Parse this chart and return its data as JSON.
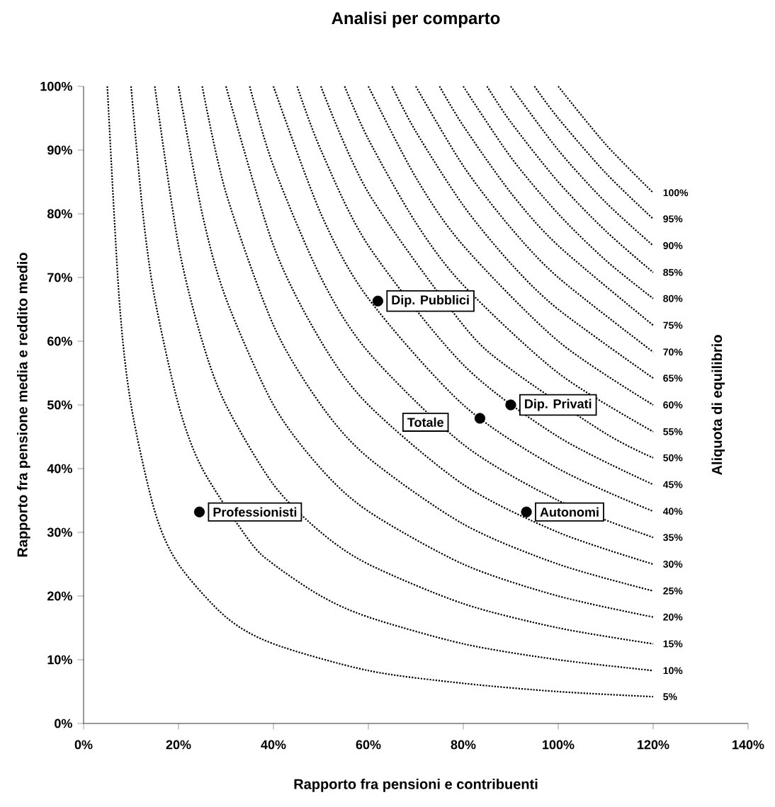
{
  "chart_data": {
    "type": "line",
    "title": "Analisi per comparto",
    "xlabel": "Rapporto fra pensioni e contribuenti",
    "ylabel": "Rapporto fra pensione media e reddito medio",
    "y2label": "Aliquota di equilibrio",
    "xlim": [
      0,
      140
    ],
    "ylim": [
      0,
      100
    ],
    "xticks": [
      {
        "value": 0,
        "label": "0%"
      },
      {
        "value": 20,
        "label": "20%"
      },
      {
        "value": 40,
        "label": "40%"
      },
      {
        "value": 60,
        "label": "60%"
      },
      {
        "value": 80,
        "label": "80%"
      },
      {
        "value": 100,
        "label": "100%"
      },
      {
        "value": 120,
        "label": "120%"
      },
      {
        "value": 140,
        "label": "140%"
      }
    ],
    "yticks": [
      {
        "value": 0,
        "label": "0%"
      },
      {
        "value": 10,
        "label": "10%"
      },
      {
        "value": 20,
        "label": "20%"
      },
      {
        "value": 30,
        "label": "30%"
      },
      {
        "value": 40,
        "label": "40%"
      },
      {
        "value": 50,
        "label": "50%"
      },
      {
        "value": 60,
        "label": "60%"
      },
      {
        "value": 70,
        "label": "70%"
      },
      {
        "value": 80,
        "label": "80%"
      },
      {
        "value": 90,
        "label": "90%"
      },
      {
        "value": 100,
        "label": "100%"
      }
    ],
    "grid": false,
    "marker": "none",
    "line_style": "dotted",
    "series": [
      {
        "name": "5%",
        "color": "#000000",
        "x": [
          5,
          7.5,
          10,
          15,
          20,
          30,
          40,
          60,
          80,
          100,
          120
        ],
        "values": [
          100,
          66.7,
          50,
          33.3,
          25,
          16.7,
          12.5,
          8.3,
          6.3,
          5,
          4.2
        ]
      },
      {
        "name": "10%",
        "color": "#000000",
        "x": [
          10,
          12.5,
          15,
          20,
          25,
          35,
          40,
          50,
          60,
          80,
          100,
          120
        ],
        "values": [
          100,
          80,
          66.7,
          50,
          40,
          28.6,
          25,
          20,
          16.7,
          12.5,
          10,
          8.3
        ]
      },
      {
        "name": "15%",
        "color": "#000000",
        "x": [
          15,
          20,
          25,
          30,
          40,
          50,
          60,
          80,
          100,
          120
        ],
        "values": [
          100,
          75,
          60,
          50,
          37.5,
          30,
          25,
          18.8,
          15,
          12.5
        ]
      },
      {
        "name": "20%",
        "color": "#000000",
        "x": [
          20,
          25,
          30,
          40,
          50,
          60,
          80,
          100,
          120
        ],
        "values": [
          100,
          80,
          66.7,
          50,
          40,
          33.3,
          25,
          20,
          16.7
        ]
      },
      {
        "name": "25%",
        "color": "#000000",
        "x": [
          25,
          30,
          40,
          50,
          60,
          80,
          100,
          120
        ],
        "values": [
          100,
          83.3,
          62.5,
          50,
          41.7,
          31.3,
          25,
          20.8
        ]
      },
      {
        "name": "30%",
        "color": "#000000",
        "x": [
          30,
          40,
          50,
          60,
          80,
          100,
          120
        ],
        "values": [
          100,
          75,
          60,
          50,
          37.5,
          30,
          25
        ]
      },
      {
        "name": "35%",
        "color": "#000000",
        "x": [
          35,
          40,
          50,
          60,
          80,
          100,
          120
        ],
        "values": [
          100,
          87.5,
          70,
          58.3,
          43.8,
          35,
          29.2
        ]
      },
      {
        "name": "40%",
        "color": "#000000",
        "x": [
          40,
          50,
          60,
          80,
          100,
          120
        ],
        "values": [
          100,
          80,
          66.7,
          50,
          40,
          33.3
        ]
      },
      {
        "name": "45%",
        "color": "#000000",
        "x": [
          45,
          50,
          60,
          80,
          100,
          120
        ],
        "values": [
          100,
          90,
          75,
          56.3,
          45,
          37.5
        ]
      },
      {
        "name": "50%",
        "color": "#000000",
        "x": [
          50,
          60,
          80,
          90,
          110,
          120
        ],
        "values": [
          100,
          83.3,
          62.5,
          55.6,
          45.5,
          41.7
        ]
      },
      {
        "name": "55%",
        "color": "#000000",
        "x": [
          55,
          60,
          70,
          80,
          100,
          120
        ],
        "values": [
          100,
          91.7,
          78.6,
          68.8,
          55,
          45.8
        ]
      },
      {
        "name": "60%",
        "color": "#000000",
        "x": [
          60,
          70,
          80,
          100,
          120
        ],
        "values": [
          100,
          85.7,
          75,
          60,
          50
        ]
      },
      {
        "name": "65%",
        "color": "#000000",
        "x": [
          65,
          70,
          80,
          90,
          100,
          120
        ],
        "values": [
          100,
          92.9,
          81.3,
          72.2,
          65,
          54.2
        ]
      },
      {
        "name": "70%",
        "color": "#000000",
        "x": [
          70,
          80,
          90,
          100,
          120
        ],
        "values": [
          100,
          87.5,
          77.8,
          70,
          58.3
        ]
      },
      {
        "name": "75%",
        "color": "#000000",
        "x": [
          75,
          80,
          90,
          100,
          120
        ],
        "values": [
          100,
          93.8,
          83.3,
          75,
          62.5
        ]
      },
      {
        "name": "80%",
        "color": "#000000",
        "x": [
          80,
          90,
          100,
          110,
          120
        ],
        "values": [
          100,
          88.9,
          80,
          72.7,
          66.7
        ]
      },
      {
        "name": "85%",
        "color": "#000000",
        "x": [
          85,
          90,
          100,
          110,
          120
        ],
        "values": [
          100,
          94.4,
          85,
          77.3,
          70.8
        ]
      },
      {
        "name": "90%",
        "color": "#000000",
        "x": [
          90,
          100,
          110,
          120
        ],
        "values": [
          100,
          90,
          81.8,
          75
        ]
      },
      {
        "name": "95%",
        "color": "#000000",
        "x": [
          95,
          100,
          110,
          120
        ],
        "values": [
          100,
          95,
          86.4,
          79.2
        ]
      },
      {
        "name": "100%",
        "color": "#000000",
        "x": [
          100,
          110,
          120
        ],
        "values": [
          100,
          90.9,
          83.3
        ]
      },
      {
        "type": "scatter",
        "marker": "circle",
        "color": "#000000",
        "x": [
          24.4,
          62,
          83.5,
          90,
          93.3
        ],
        "values": [
          33.2,
          66.3,
          47.9,
          50,
          33.2
        ]
      }
    ],
    "annotations": [
      {
        "text": "Professionisti",
        "x": 24.4,
        "y": 33.2
      },
      {
        "text": "Dip. Pubblici",
        "x": 62,
        "y": 66.3
      },
      {
        "text": "Totale",
        "x": 83.5,
        "y": 47.9
      },
      {
        "text": "Dip. Privati",
        "x": 90,
        "y": 50
      },
      {
        "text": "Autonomi",
        "x": 93.3,
        "y": 33.2
      }
    ]
  }
}
